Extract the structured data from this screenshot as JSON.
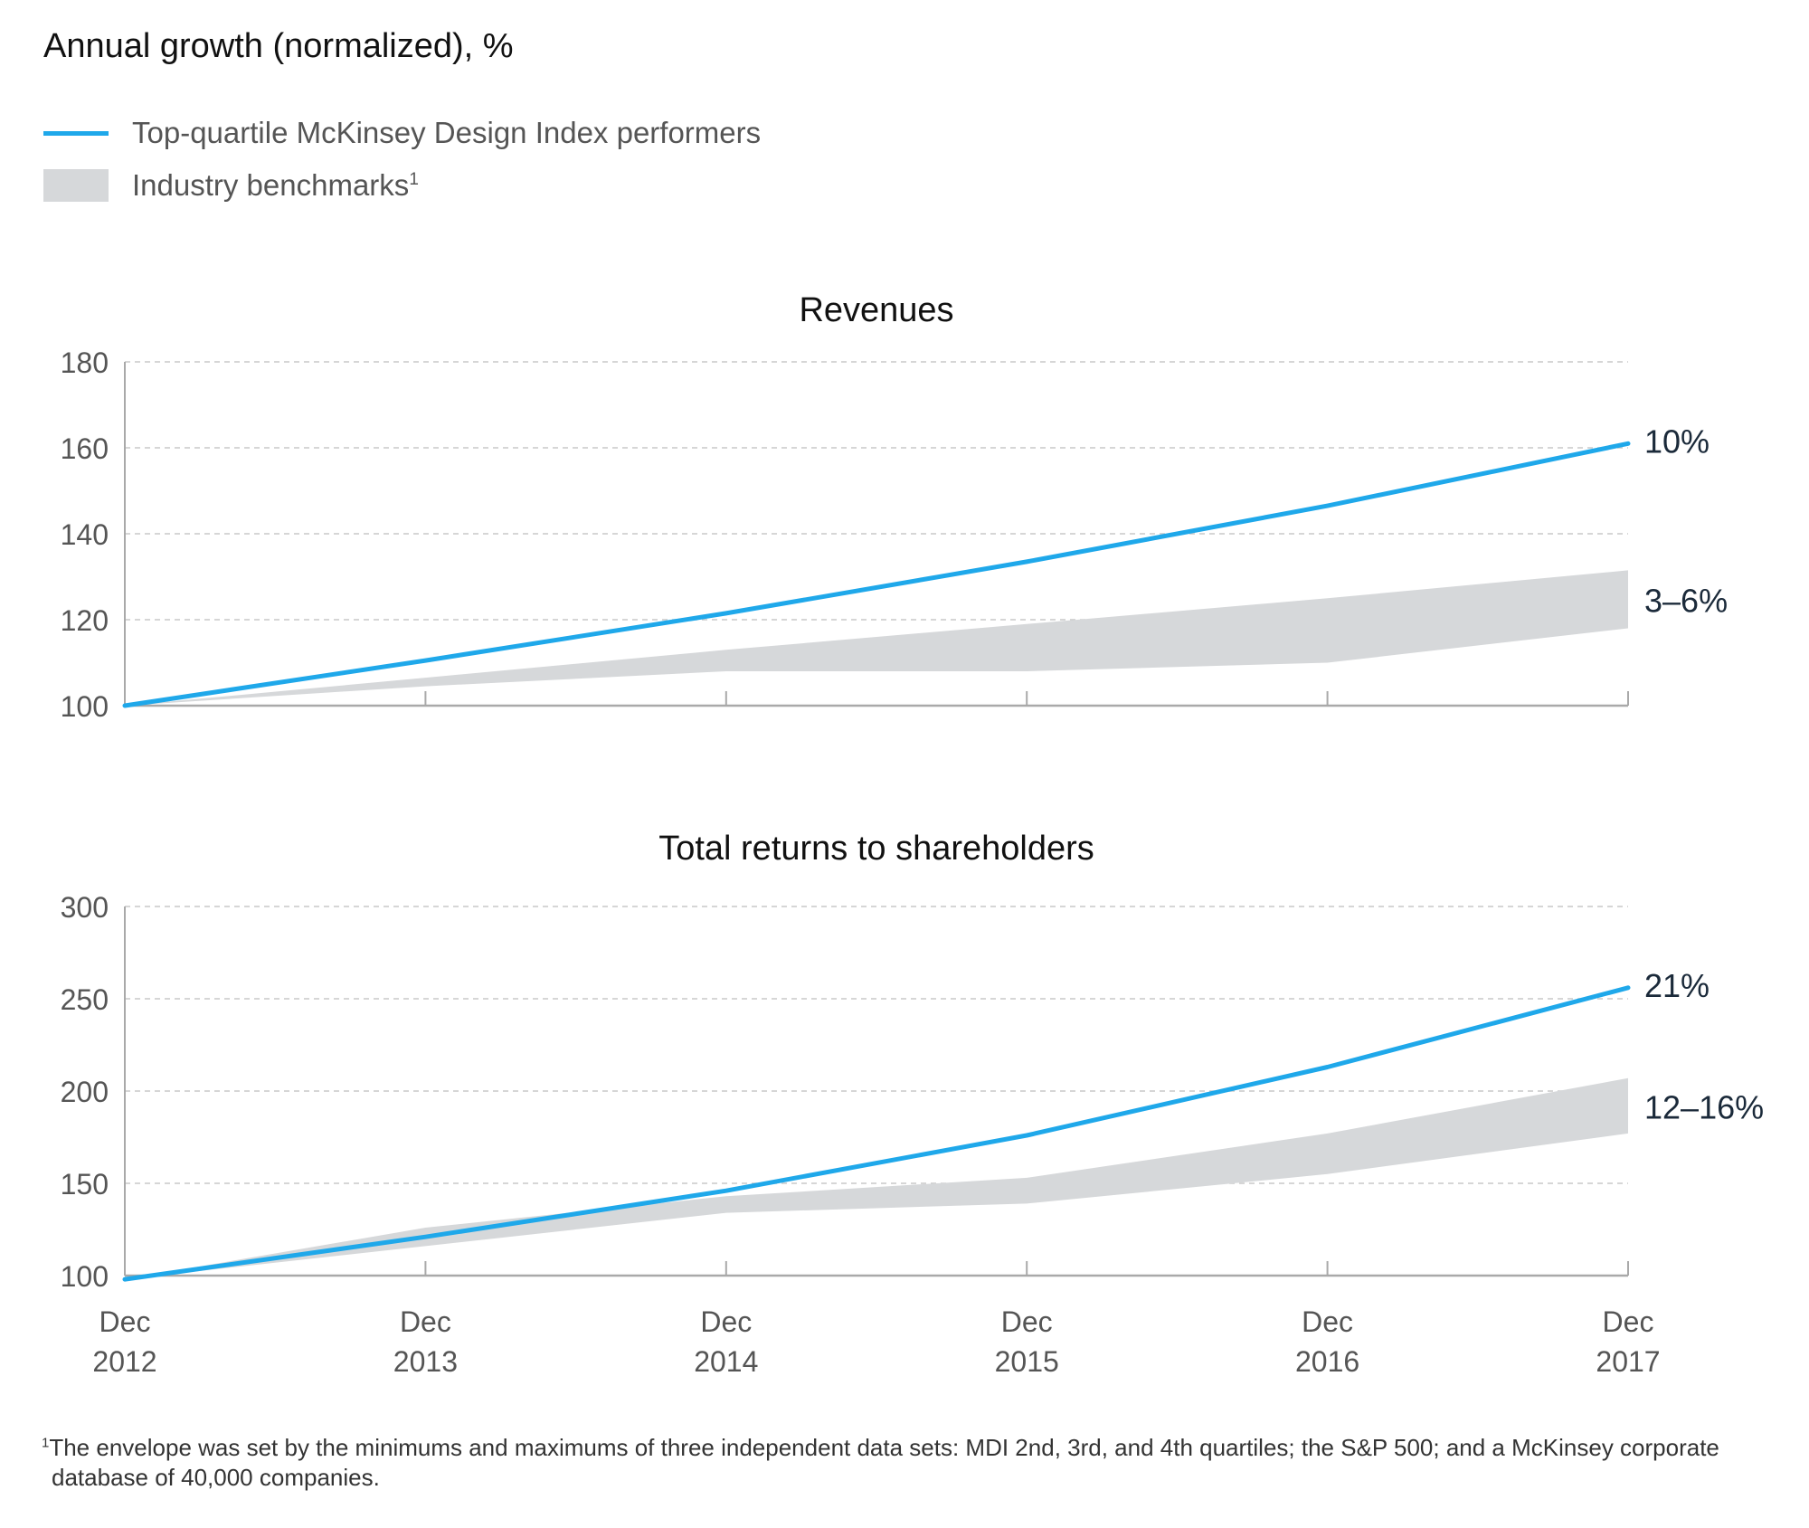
{
  "header": {
    "title": "Annual growth (normalized), %"
  },
  "legend": {
    "items": [
      {
        "label": "Top-quartile McKinsey Design Index performers",
        "kind": "line"
      },
      {
        "label": "Industry benchmarks",
        "sup": "1",
        "kind": "band"
      }
    ]
  },
  "colors": {
    "line": "#1fa8ea",
    "band": "#d6d8da",
    "grid": "#c9c9c9",
    "axis": "#a9a9a9",
    "text_dark": "#111111",
    "text_mid": "#555555"
  },
  "chart_data": [
    {
      "type": "line",
      "title": "Revenues",
      "categories": [
        [
          "Dec",
          "2012"
        ],
        [
          "Dec",
          "2013"
        ],
        [
          "Dec",
          "2014"
        ],
        [
          "Dec",
          "2015"
        ],
        [
          "Dec",
          "2016"
        ],
        [
          "Dec",
          "2017"
        ]
      ],
      "ylim": [
        100,
        180
      ],
      "yticks": [
        100,
        120,
        140,
        160,
        180
      ],
      "grid": true,
      "series": [
        {
          "name": "Top-quartile McKinsey Design Index performers",
          "kind": "line",
          "values": [
            100,
            110.5,
            121.5,
            133.5,
            146.5,
            161
          ]
        },
        {
          "name": "Industry benchmarks (max)",
          "kind": "band_upper",
          "values": [
            100,
            106.5,
            113,
            119,
            125,
            131.5
          ]
        },
        {
          "name": "Industry benchmarks (min)",
          "kind": "band_lower",
          "values": [
            100,
            104.5,
            108,
            108,
            110,
            118
          ]
        }
      ],
      "annotations": [
        {
          "text": "10%",
          "series": "line"
        },
        {
          "text": "3–6%",
          "series": "band"
        }
      ]
    },
    {
      "type": "line",
      "title": "Total returns to shareholders",
      "categories": [
        [
          "Dec",
          "2012"
        ],
        [
          "Dec",
          "2013"
        ],
        [
          "Dec",
          "2014"
        ],
        [
          "Dec",
          "2015"
        ],
        [
          "Dec",
          "2016"
        ],
        [
          "Dec",
          "2017"
        ]
      ],
      "ylim": [
        100,
        300
      ],
      "yticks": [
        100,
        150,
        200,
        250,
        300
      ],
      "grid": true,
      "series": [
        {
          "name": "Top-quartile McKinsey Design Index performers",
          "kind": "line",
          "values": [
            98,
            121,
            146,
            176,
            213,
            256
          ]
        },
        {
          "name": "Industry benchmarks (max)",
          "kind": "band_upper",
          "values": [
            98,
            126,
            143,
            153,
            177,
            207
          ]
        },
        {
          "name": "Industry benchmarks (min)",
          "kind": "band_lower",
          "values": [
            98,
            116,
            134,
            139,
            155,
            177
          ]
        }
      ],
      "annotations": [
        {
          "text": "21%",
          "series": "line"
        },
        {
          "text": "12–16%",
          "series": "band"
        }
      ]
    }
  ],
  "footnote": {
    "marker": "1",
    "text": "The envelope was set by the minimums and maximums of three independent data sets: MDI 2nd, 3rd, and 4th quartiles; the S&P 500; and a McKinsey corporate database of 40,000 companies."
  }
}
